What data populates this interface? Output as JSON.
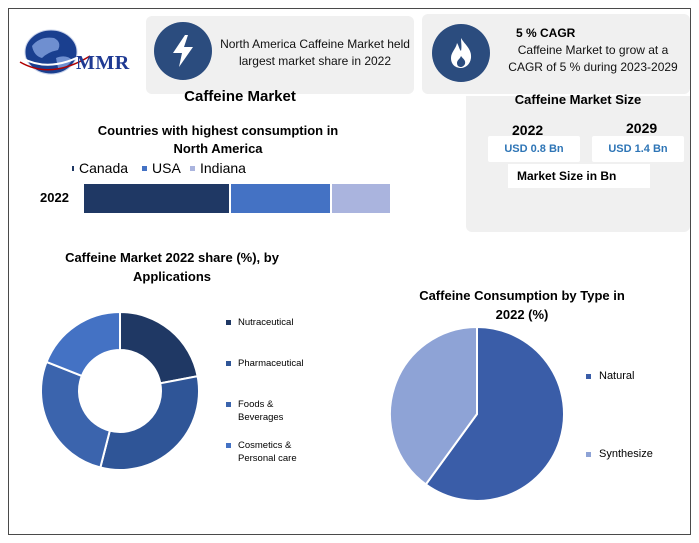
{
  "logo": {
    "text": "MMR"
  },
  "colors": {
    "navy": "#1f3864",
    "blue": "#4472c4",
    "lightblue": "#aab4de",
    "icon_bg": "#2b4c7e",
    "cyan": "#2e75b6"
  },
  "header": {
    "card1": {
      "icon": "lightning-icon",
      "text": "North America Caffeine Market held largest market share in 2022"
    },
    "card2": {
      "icon": "flame-icon",
      "title": "5 % CAGR",
      "text": "Caffeine Market to grow at a CAGR of 5 % during 2023-2029"
    }
  },
  "main_title": "Caffeine Market",
  "market_size": {
    "title": "Caffeine Market Size",
    "years": [
      "2022",
      "2029"
    ],
    "values": [
      "USD 0.8 Bn",
      "USD 1.4 Bn"
    ],
    "unit_label": "Market Size in Bn"
  },
  "chart_data": [
    {
      "type": "bar",
      "orientation": "horizontal-stacked",
      "title": "Countries with highest consumption in North America",
      "categories": [
        "2022"
      ],
      "series": [
        {
          "name": "Canada",
          "values": [
            48
          ],
          "color": "#1f3864"
        },
        {
          "name": "USA",
          "values": [
            33
          ],
          "color": "#4472c4"
        },
        {
          "name": "Indiana",
          "values": [
            19
          ],
          "color": "#aab4de"
        }
      ],
      "legend": "top"
    },
    {
      "type": "pie",
      "style": "donut",
      "title": "Caffeine Market 2022 share (%), by Applications",
      "labels": [
        "Nutraceutical",
        "Pharmaceutical",
        "Foods & Beverages",
        "Cosmetics & Personal care"
      ],
      "values": [
        22,
        32,
        27,
        19
      ],
      "colors": [
        "#1f3864",
        "#2f5597",
        "#3b64ad",
        "#4472c4"
      ],
      "legend": "right"
    },
    {
      "type": "pie",
      "title": "Caffeine Consumption by Type in 2022 (%)",
      "labels": [
        "Natural",
        "Synthesize"
      ],
      "values": [
        60,
        40
      ],
      "colors": [
        "#3a5da8",
        "#8ea3d6"
      ],
      "legend": "right"
    }
  ]
}
